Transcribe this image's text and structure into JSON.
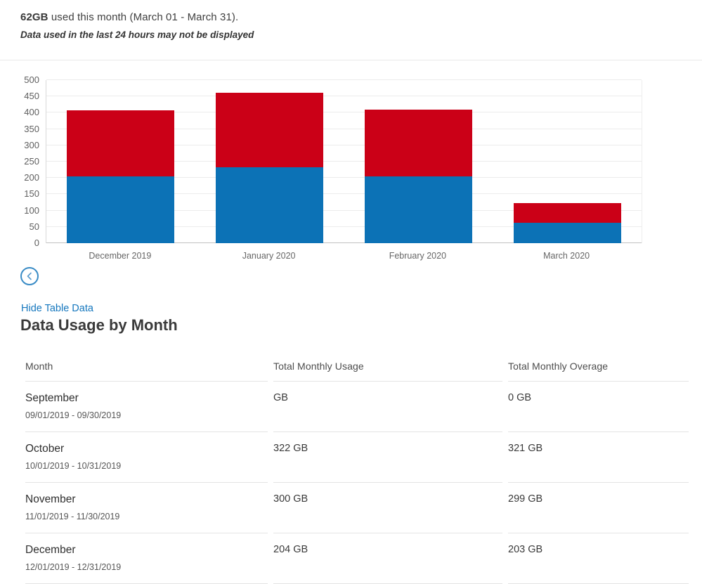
{
  "header": {
    "amount": "62GB",
    "rest": " used this month (March 01 - March 31).",
    "disclaimer": "Data used in the last 24 hours may not be displayed"
  },
  "chart_data": {
    "type": "bar",
    "stacked": true,
    "title": "",
    "xlabel": "",
    "ylabel": "",
    "categories": [
      "December 2019",
      "January 2020",
      "February 2020",
      "March 2020"
    ],
    "series": [
      {
        "name": "Total Monthly Usage",
        "color": "#0c72b6",
        "values": [
          204,
          232,
          205,
          62
        ]
      },
      {
        "name": "Total Monthly Overage",
        "color": "#cb0017",
        "values": [
          203,
          230,
          205,
          60
        ]
      }
    ],
    "totals": [
      407,
      462,
      410,
      122
    ],
    "ylim": [
      0,
      500
    ],
    "y_ticks": [
      0,
      50,
      100,
      150,
      200,
      250,
      300,
      350,
      400,
      450,
      500
    ],
    "grid": true,
    "legend_position": "none"
  },
  "controls": {
    "hide_table_link": "Hide Table Data"
  },
  "table": {
    "title": "Data Usage by Month",
    "columns": [
      "Month",
      "Total Monthly Usage",
      "Total Monthly Overage"
    ],
    "rows": [
      {
        "month": "September",
        "range": "09/01/2019 - 09/30/2019",
        "usage": "GB",
        "overage": "0 GB"
      },
      {
        "month": "October",
        "range": "10/01/2019 - 10/31/2019",
        "usage": "322 GB",
        "overage": "321 GB"
      },
      {
        "month": "November",
        "range": "11/01/2019 - 11/30/2019",
        "usage": "300 GB",
        "overage": "299 GB"
      },
      {
        "month": "December",
        "range": "12/01/2019 - 12/31/2019",
        "usage": "204 GB",
        "overage": "203 GB"
      }
    ]
  },
  "colors": {
    "usage_blue": "#0c72b6",
    "overage_red": "#cb0017",
    "link_blue": "#1577be",
    "back_button_ring": "#3a8cc6"
  }
}
